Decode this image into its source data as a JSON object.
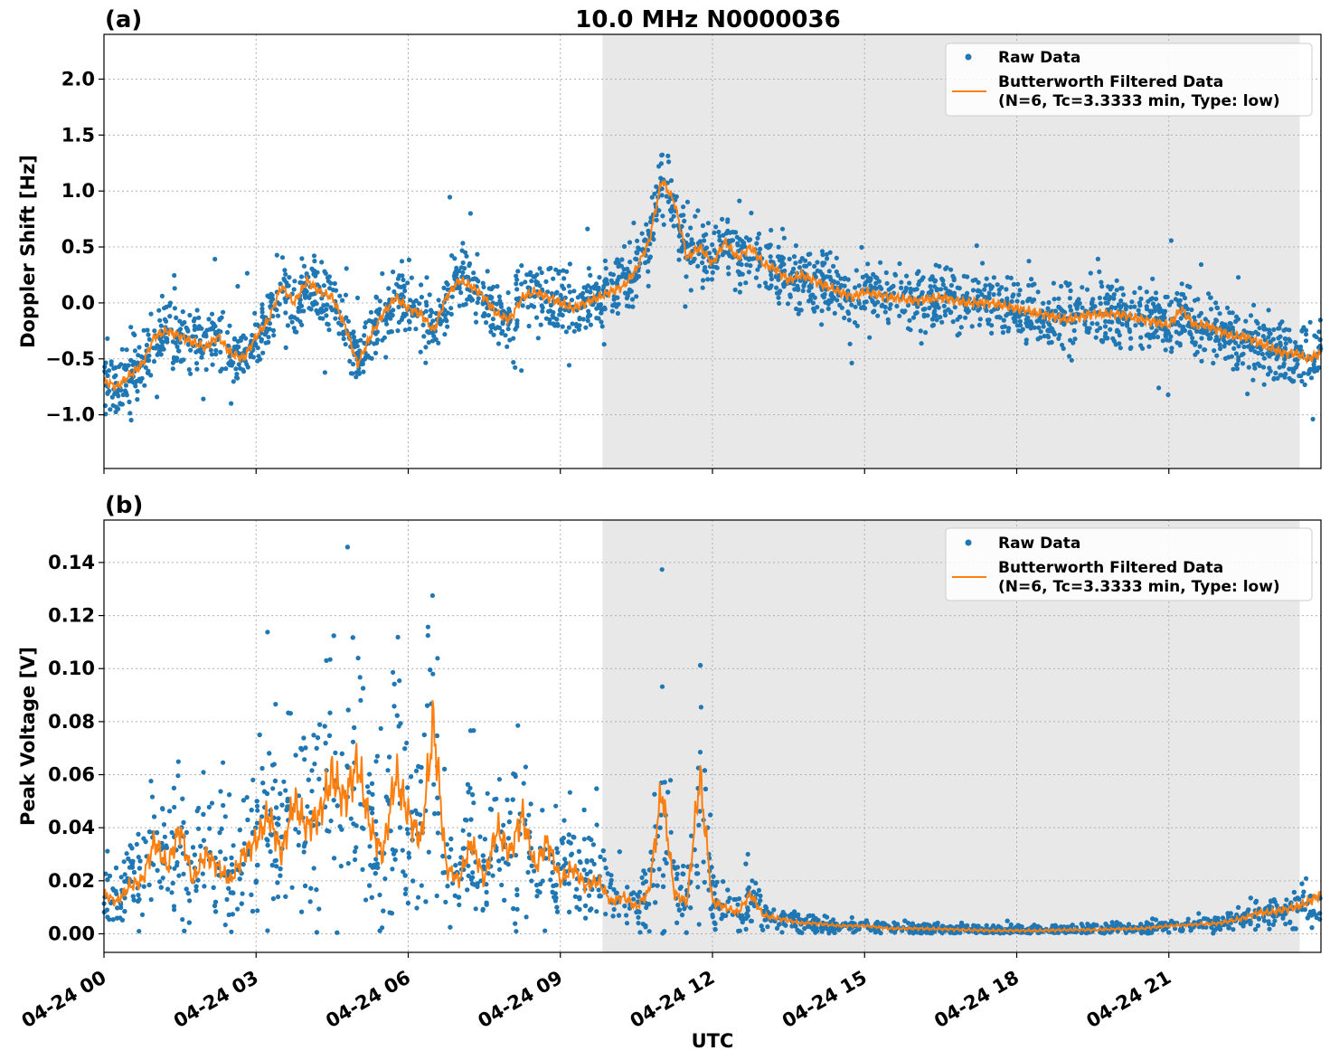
{
  "title": "10.0 MHz N0000036",
  "chart_data": [
    {
      "type": "scatter",
      "panel_label": "(a)",
      "xlabel": "",
      "ylabel": "Doppler Shift [Hz]",
      "xlim_hours": [
        0,
        24
      ],
      "ylim": [
        -1.48,
        2.4
      ],
      "yticks": [
        2.0,
        1.5,
        1.0,
        0.5,
        0.0,
        -0.5,
        -1.0
      ],
      "ytick_labels": [
        "2.0",
        "1.5",
        "1.0",
        "0.5",
        "0.0",
        "−0.5",
        "−1.0"
      ],
      "shaded_region_hours": [
        9.83,
        23.58
      ],
      "grid": true,
      "legend_position": "top-right",
      "legend": [
        "Raw Data",
        "Butterworth Filtered Data",
        "(N=6, Tc=3.3333 min, Type: low)"
      ],
      "series": [
        {
          "name": "Butterworth Filtered Data",
          "style": "line",
          "color": "#ff7f0e",
          "x": [
            0,
            0.25,
            0.5,
            0.75,
            1,
            1.25,
            1.5,
            1.75,
            2,
            2.25,
            2.5,
            2.75,
            3,
            3.25,
            3.5,
            3.75,
            4,
            4.25,
            4.5,
            4.75,
            5,
            5.25,
            5.5,
            5.75,
            6,
            6.25,
            6.5,
            6.75,
            7,
            7.25,
            7.5,
            7.75,
            8,
            8.25,
            8.5,
            8.75,
            9,
            9.25,
            9.5,
            9.75,
            10,
            10.25,
            10.5,
            10.75,
            11,
            11.25,
            11.5,
            11.75,
            12,
            12.25,
            12.5,
            12.75,
            13,
            13.25,
            13.5,
            13.75,
            14,
            14.25,
            14.5,
            14.75,
            15,
            15.5,
            16,
            16.5,
            17,
            17.5,
            18,
            18.5,
            19,
            19.5,
            20,
            20.5,
            21,
            21.25,
            21.5,
            21.75,
            22,
            22.25,
            22.5,
            22.75,
            23,
            23.25,
            23.5,
            23.75,
            24
          ],
          "values": [
            -0.7,
            -0.75,
            -0.65,
            -0.55,
            -0.3,
            -0.25,
            -0.3,
            -0.35,
            -0.4,
            -0.3,
            -0.45,
            -0.5,
            -0.3,
            -0.15,
            0.15,
            0.0,
            0.2,
            0.1,
            0.05,
            -0.2,
            -0.55,
            -0.3,
            -0.1,
            0.05,
            -0.05,
            -0.1,
            -0.25,
            0.05,
            0.2,
            0.15,
            0.05,
            -0.1,
            -0.15,
            0.05,
            0.1,
            0.05,
            0.0,
            -0.05,
            0.0,
            0.05,
            0.1,
            0.15,
            0.3,
            0.55,
            1.1,
            0.9,
            0.4,
            0.5,
            0.35,
            0.55,
            0.4,
            0.5,
            0.35,
            0.3,
            0.2,
            0.25,
            0.2,
            0.15,
            0.1,
            0.05,
            0.1,
            0.05,
            0.02,
            0.05,
            0.0,
            0.0,
            -0.05,
            -0.1,
            -0.15,
            -0.1,
            -0.1,
            -0.15,
            -0.2,
            -0.05,
            -0.2,
            -0.2,
            -0.25,
            -0.3,
            -0.3,
            -0.35,
            -0.4,
            -0.45,
            -0.45,
            -0.5,
            -0.45
          ]
        }
      ]
    },
    {
      "type": "scatter",
      "panel_label": "(b)",
      "xlabel": "UTC",
      "ylabel": "Peak Voltage [V]",
      "xlim_hours": [
        0,
        24
      ],
      "ylim": [
        -0.007,
        0.156
      ],
      "yticks": [
        0.14,
        0.12,
        0.1,
        0.08,
        0.06,
        0.04,
        0.02,
        0.0
      ],
      "ytick_labels": [
        "0.14",
        "0.12",
        "0.10",
        "0.08",
        "0.06",
        "0.04",
        "0.02",
        "0.00"
      ],
      "xtick_hours": [
        0,
        3,
        6,
        9,
        12,
        15,
        18,
        21
      ],
      "xtick_labels": [
        "04-24 00",
        "04-24 03",
        "04-24 06",
        "04-24 09",
        "04-24 12",
        "04-24 15",
        "04-24 18",
        "04-24 21"
      ],
      "shaded_region_hours": [
        9.83,
        23.58
      ],
      "grid": true,
      "legend_position": "top-right",
      "legend": [
        "Raw Data",
        "Butterworth Filtered Data",
        "(N=6, Tc=3.3333 min, Type: low)"
      ],
      "series": [
        {
          "name": "Butterworth Filtered Data",
          "style": "line",
          "color": "#ff7f0e",
          "x": [
            0,
            0.25,
            0.5,
            0.75,
            1,
            1.25,
            1.5,
            1.75,
            2,
            2.25,
            2.5,
            2.75,
            3,
            3.25,
            3.5,
            3.75,
            4,
            4.25,
            4.5,
            4.75,
            5,
            5.25,
            5.5,
            5.75,
            6,
            6.25,
            6.5,
            6.75,
            7,
            7.25,
            7.5,
            7.75,
            8,
            8.25,
            8.5,
            8.75,
            9,
            9.25,
            9.5,
            9.75,
            10,
            10.25,
            10.5,
            10.75,
            11,
            11.25,
            11.5,
            11.75,
            12,
            12.25,
            12.5,
            12.75,
            13,
            13.25,
            13.5,
            13.75,
            14,
            14.5,
            15,
            15.5,
            16,
            16.5,
            17,
            17.5,
            18,
            18.5,
            19,
            19.5,
            20,
            20.5,
            21,
            21.5,
            22,
            22.25,
            22.5,
            22.75,
            23,
            23.25,
            23.5,
            23.75,
            24
          ],
          "values": [
            0.015,
            0.012,
            0.018,
            0.02,
            0.035,
            0.025,
            0.04,
            0.02,
            0.03,
            0.025,
            0.02,
            0.03,
            0.035,
            0.045,
            0.03,
            0.05,
            0.04,
            0.045,
            0.06,
            0.05,
            0.065,
            0.04,
            0.03,
            0.06,
            0.045,
            0.035,
            0.08,
            0.025,
            0.02,
            0.035,
            0.02,
            0.04,
            0.03,
            0.045,
            0.025,
            0.035,
            0.02,
            0.025,
            0.018,
            0.02,
            0.012,
            0.014,
            0.01,
            0.016,
            0.055,
            0.015,
            0.012,
            0.06,
            0.012,
            0.01,
            0.008,
            0.015,
            0.007,
            0.006,
            0.005,
            0.004,
            0.004,
            0.003,
            0.003,
            0.002,
            0.002,
            0.0018,
            0.0015,
            0.0012,
            0.0012,
            0.0012,
            0.0015,
            0.0015,
            0.0018,
            0.002,
            0.003,
            0.0035,
            0.004,
            0.005,
            0.006,
            0.008,
            0.008,
            0.009,
            0.01,
            0.012,
            0.015
          ]
        }
      ]
    }
  ],
  "colors": {
    "raw": "#1f77b4",
    "filtered": "#ff7f0e",
    "shade": "#e8e8e8"
  }
}
